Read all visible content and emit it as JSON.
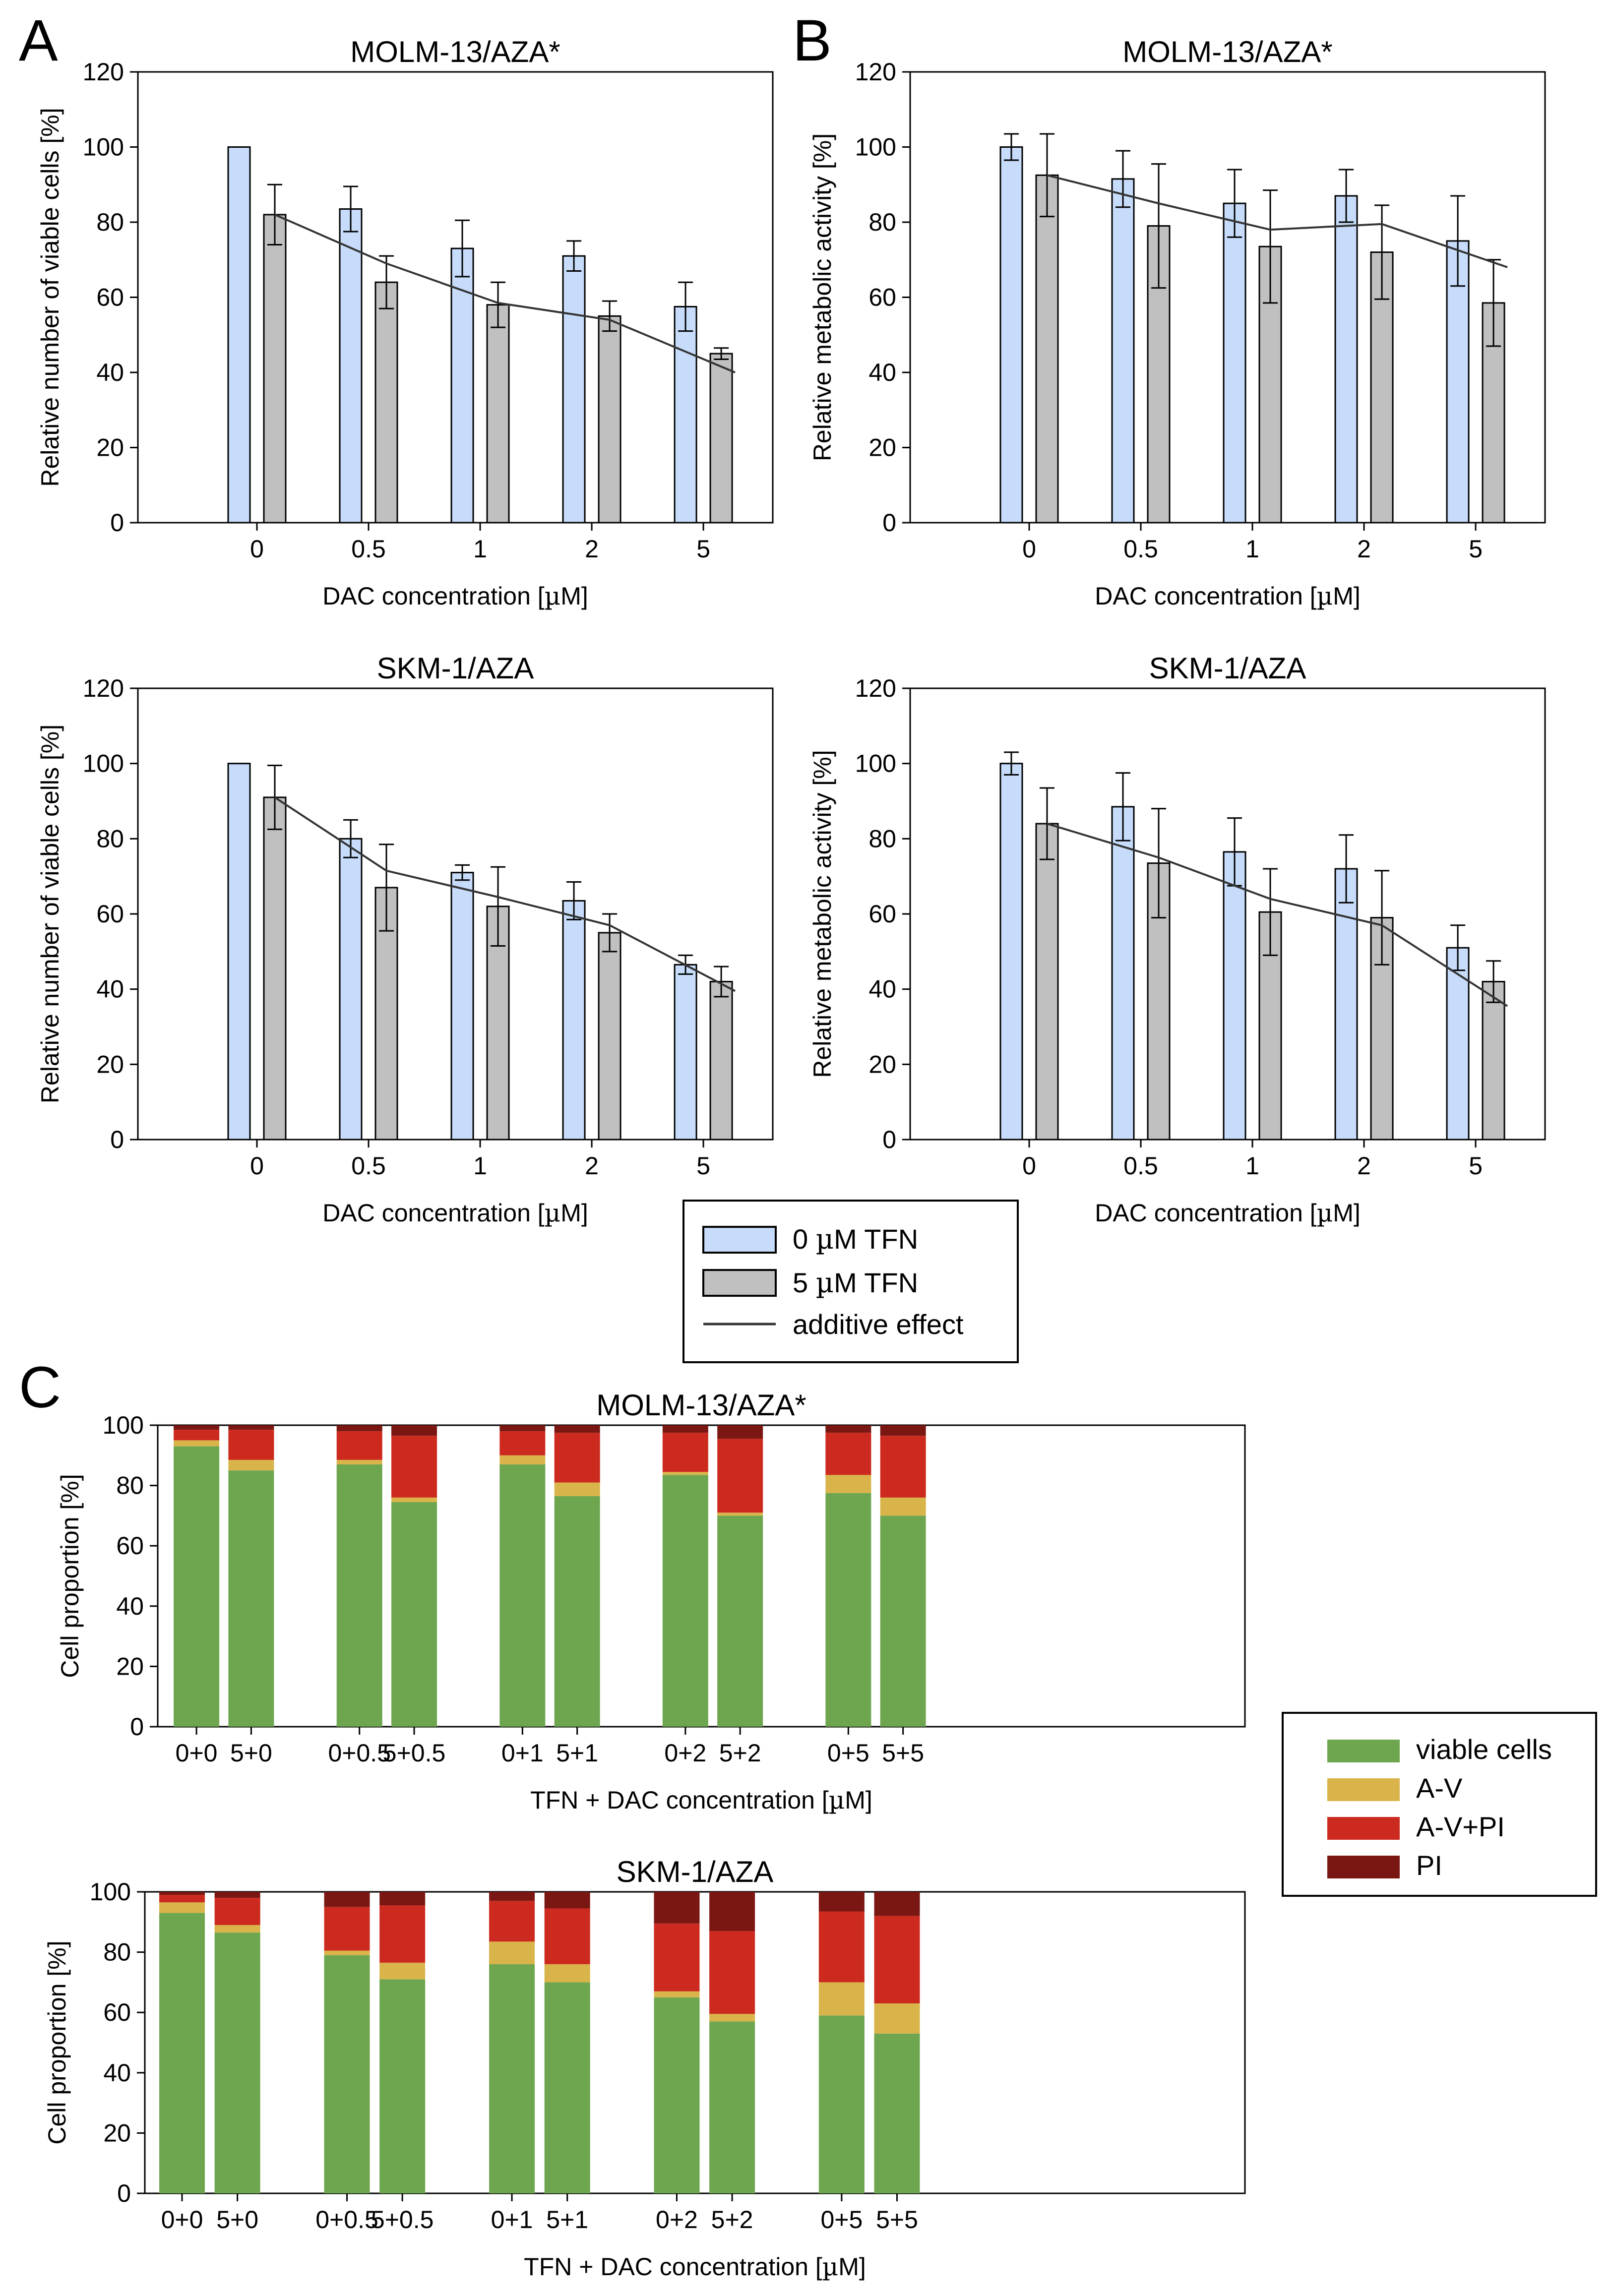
{
  "panel_labels": [
    "A",
    "B",
    "C"
  ],
  "legend_top": {
    "items": [
      {
        "label": "0 µM TFN",
        "kind": "box",
        "color": "#c6dcfa"
      },
      {
        "label": "5 µM TFN",
        "kind": "box",
        "color": "#c0c0c0"
      },
      {
        "label": "additive effect",
        "kind": "line",
        "color": "#333333"
      }
    ]
  },
  "legend_bottom": {
    "items": [
      {
        "label": "viable cells",
        "color": "#6ea64f"
      },
      {
        "label": "A-V",
        "color": "#d9b44a"
      },
      {
        "label": "A-V+PI",
        "color": "#cc2a1f"
      },
      {
        "label": "PI",
        "color": "#7a1713"
      }
    ]
  },
  "chart_data": [
    {
      "id": "A1",
      "type": "bar",
      "panel": "A",
      "title": "MOLM-13/AZA*",
      "xlabel": "DAC concentration [µM]",
      "ylabel": "Relative number of viable cells [%]",
      "ylim": [
        0,
        120
      ],
      "yticks": [
        0,
        20,
        40,
        60,
        80,
        100,
        120
      ],
      "categories": [
        "0",
        "0.5",
        "1",
        "2",
        "5"
      ],
      "series": [
        {
          "name": "0 µM TFN",
          "values": [
            100,
            83.5,
            73,
            71,
            57.5
          ],
          "errors": [
            0,
            6,
            7.5,
            4,
            6.5
          ]
        },
        {
          "name": "5 µM TFN",
          "values": [
            82,
            64,
            58,
            55,
            45
          ],
          "errors": [
            8,
            7,
            6,
            4,
            1.5
          ]
        },
        {
          "name": "additive effect",
          "values": [
            82,
            69,
            58.5,
            54,
            40
          ]
        }
      ]
    },
    {
      "id": "B1",
      "type": "bar",
      "panel": "B",
      "title": "MOLM-13/AZA*",
      "xlabel": "DAC concentration [µM]",
      "ylabel": "Relative metabolic activity [%]",
      "ylim": [
        0,
        120
      ],
      "yticks": [
        0,
        20,
        40,
        60,
        80,
        100,
        120
      ],
      "categories": [
        "0",
        "0.5",
        "1",
        "2",
        "5"
      ],
      "series": [
        {
          "name": "0 µM TFN",
          "values": [
            100,
            91.5,
            85,
            87,
            75
          ],
          "errors": [
            3.5,
            7.5,
            9,
            7,
            12
          ]
        },
        {
          "name": "5 µM TFN",
          "values": [
            92.5,
            79,
            73.5,
            72,
            58.5
          ],
          "errors": [
            11,
            16.5,
            15,
            12.5,
            11.5
          ]
        },
        {
          "name": "additive effect",
          "values": [
            92.5,
            85,
            78,
            79.5,
            68
          ]
        }
      ]
    },
    {
      "id": "A2",
      "type": "bar",
      "panel": "A",
      "title": "SKM-1/AZA",
      "xlabel": "DAC concentration [µM]",
      "ylabel": "Relative number of viable cells [%]",
      "ylim": [
        0,
        120
      ],
      "yticks": [
        0,
        20,
        40,
        60,
        80,
        100,
        120
      ],
      "categories": [
        "0",
        "0.5",
        "1",
        "2",
        "5"
      ],
      "series": [
        {
          "name": "0 µM TFN",
          "values": [
            100,
            80,
            71,
            63.5,
            46.5
          ],
          "errors": [
            0,
            5,
            2,
            5,
            2.5
          ]
        },
        {
          "name": "5 µM TFN",
          "values": [
            91,
            67,
            62,
            55,
            42
          ],
          "errors": [
            8.5,
            11.5,
            10.5,
            5,
            4
          ]
        },
        {
          "name": "additive effect",
          "values": [
            91,
            71.5,
            64.5,
            57,
            39.5
          ]
        }
      ]
    },
    {
      "id": "B2",
      "type": "bar",
      "panel": "B",
      "title": "SKM-1/AZA",
      "xlabel": "DAC concentration [µM]",
      "ylabel": "Relative metabolic activity [%]",
      "ylim": [
        0,
        120
      ],
      "yticks": [
        0,
        20,
        40,
        60,
        80,
        100,
        120
      ],
      "categories": [
        "0",
        "0.5",
        "1",
        "2",
        "5"
      ],
      "series": [
        {
          "name": "0 µM TFN",
          "values": [
            100,
            88.5,
            76.5,
            72,
            51
          ],
          "errors": [
            3,
            9,
            9,
            9,
            6
          ]
        },
        {
          "name": "5 µM TFN",
          "values": [
            84,
            73.5,
            60.5,
            59,
            42
          ],
          "errors": [
            9.5,
            14.5,
            11.5,
            12.5,
            5.5
          ]
        },
        {
          "name": "additive effect",
          "values": [
            84,
            75,
            64,
            57,
            35.5
          ]
        }
      ]
    },
    {
      "id": "C1",
      "type": "stacked-bar",
      "panel": "C",
      "title": "MOLM-13/AZA*",
      "xlabel": "TFN + DAC concentration [µM]",
      "ylabel": "Cell proportion [%]",
      "ylim": [
        0,
        100
      ],
      "yticks": [
        0,
        20,
        40,
        60,
        80,
        100
      ],
      "categories": [
        "0+0",
        "5+0",
        "0+0.5",
        "5+0.5",
        "0+1",
        "5+1",
        "0+2",
        "5+2",
        "0+5",
        "5+5"
      ],
      "series": [
        {
          "name": "viable cells",
          "values": [
            93,
            85,
            87,
            74.5,
            87,
            76.5,
            83.5,
            70,
            77.5,
            70
          ]
        },
        {
          "name": "A-V",
          "values": [
            2,
            3.5,
            1.5,
            1.5,
            3,
            4.5,
            1,
            1,
            6,
            6
          ]
        },
        {
          "name": "A-V+PI",
          "values": [
            3.5,
            10,
            9.5,
            20.5,
            8,
            16.5,
            13,
            24.5,
            14,
            20.5
          ]
        },
        {
          "name": "PI",
          "values": [
            1.5,
            1.5,
            2,
            3.5,
            2,
            2.5,
            2.5,
            4.5,
            2.5,
            3.5
          ]
        }
      ]
    },
    {
      "id": "C2",
      "type": "stacked-bar",
      "panel": "C",
      "title": "SKM-1/AZA",
      "xlabel": "TFN + DAC concentration [µM]",
      "ylabel": "Cell proportion [%]",
      "ylim": [
        0,
        100
      ],
      "yticks": [
        0,
        20,
        40,
        60,
        80,
        100
      ],
      "categories": [
        "0+0",
        "5+0",
        "0+0.5",
        "5+0.5",
        "0+1",
        "5+1",
        "0+2",
        "5+2",
        "0+5",
        "5+5"
      ],
      "series": [
        {
          "name": "viable cells",
          "values": [
            93,
            86.5,
            79,
            71,
            76,
            70,
            65,
            57,
            59,
            53
          ]
        },
        {
          "name": "A-V",
          "values": [
            3.5,
            2.5,
            1.5,
            5.5,
            7.5,
            6,
            2,
            2.5,
            11,
            10
          ]
        },
        {
          "name": "A-V+PI",
          "values": [
            2.5,
            9,
            14.5,
            19,
            13.5,
            18.5,
            22.5,
            27.5,
            23.5,
            29
          ]
        },
        {
          "name": "PI",
          "values": [
            1,
            2,
            5,
            4.5,
            3,
            5.5,
            10.5,
            13,
            6.5,
            8
          ]
        }
      ]
    }
  ]
}
